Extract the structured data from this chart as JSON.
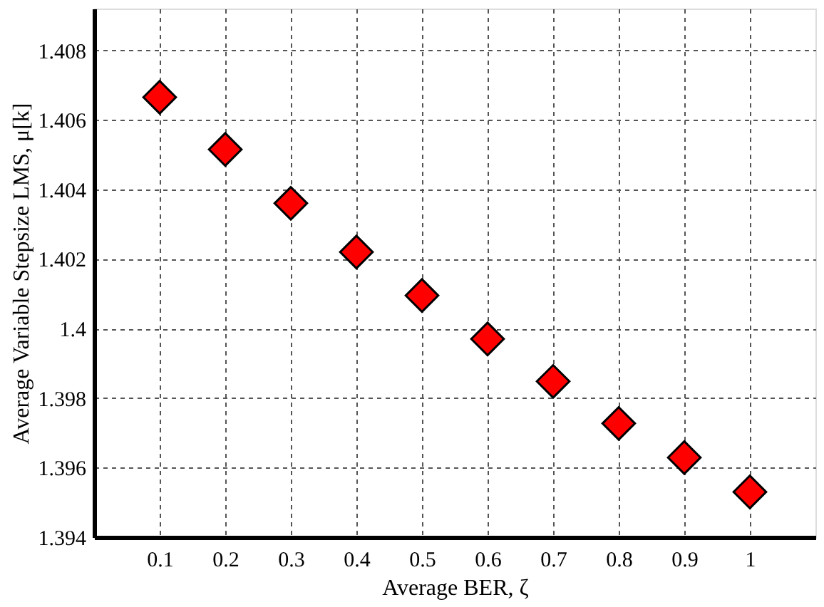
{
  "chart_data": {
    "type": "scatter",
    "xlabel": "Average BER, ζ",
    "ylabel": "Average Variable Stepsize LMS, μ[k]",
    "x": [
      0.1,
      0.2,
      0.3,
      0.4,
      0.5,
      0.6,
      0.7,
      0.8,
      0.9,
      1
    ],
    "series": [
      {
        "color": "#ff0000",
        "values": [
          1.40665,
          1.40515,
          1.4036,
          1.4022,
          1.40095,
          1.3997,
          1.39848,
          1.39727,
          1.39629,
          1.3953
        ]
      }
    ],
    "xlim": [
      0,
      1.1
    ],
    "xticks": [
      0.1,
      0.2,
      0.3,
      0.4,
      0.5,
      0.6,
      0.7,
      0.8,
      0.9,
      1
    ],
    "ylim": [
      1.394,
      1.4092
    ],
    "yticks": [
      1.394,
      1.396,
      1.398,
      1.4,
      1.402,
      1.404,
      1.406,
      1.408
    ],
    "grid": true,
    "marker": "diamond"
  }
}
